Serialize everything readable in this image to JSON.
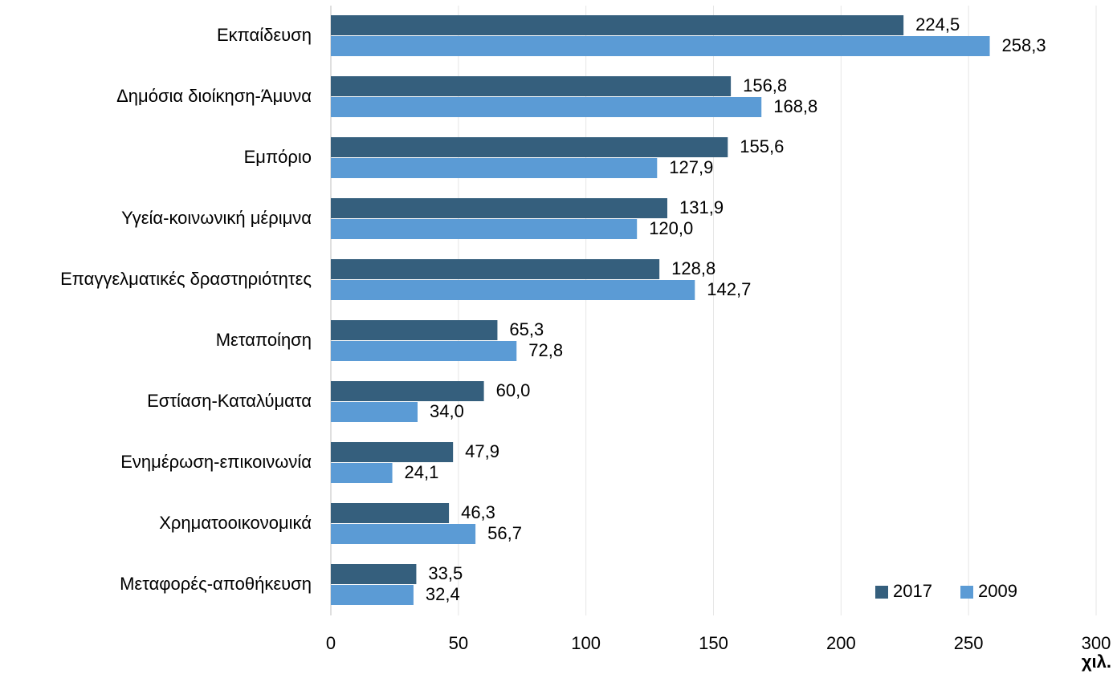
{
  "chart_data": {
    "type": "hbar",
    "categories": [
      "Εκπαίδευση",
      "Δημόσια διοίκηση-Άμυνα",
      "Εμπόριο",
      "Υγεία-κοινωνική μέριμνα",
      "Επαγγελματικές δραστηριότητες",
      "Μεταποίηση",
      "Εστίαση-Καταλύματα",
      "Ενημέρωση-επικοινωνία",
      "Χρηματοοικονομικά",
      "Μεταφορές-αποθήκευση"
    ],
    "series": [
      {
        "name": "2017",
        "color": "#355f7d",
        "values": [
          224.5,
          156.8,
          155.6,
          131.9,
          128.8,
          65.3,
          60.0,
          47.9,
          46.3,
          33.5
        ],
        "value_labels": [
          "224,5",
          "156,8",
          "155,6",
          "131,9",
          "128,8",
          "65,3",
          "60,0",
          "47,9",
          "46,3",
          "33,5"
        ]
      },
      {
        "name": "2009",
        "color": "#5b9bd5",
        "values": [
          258.3,
          168.8,
          127.9,
          120.0,
          142.7,
          72.8,
          34.0,
          24.1,
          56.7,
          32.4
        ],
        "value_labels": [
          "258,3",
          "168,8",
          "127,9",
          "120,0",
          "142,7",
          "72,8",
          "34,0",
          "24,1",
          "56,7",
          "32,4"
        ]
      }
    ],
    "xlim": [
      0,
      300
    ],
    "xticks": [
      0,
      50,
      100,
      150,
      200,
      250,
      300
    ],
    "x_axis_label": "χιλ.",
    "grid": true,
    "legend": "lower right"
  }
}
